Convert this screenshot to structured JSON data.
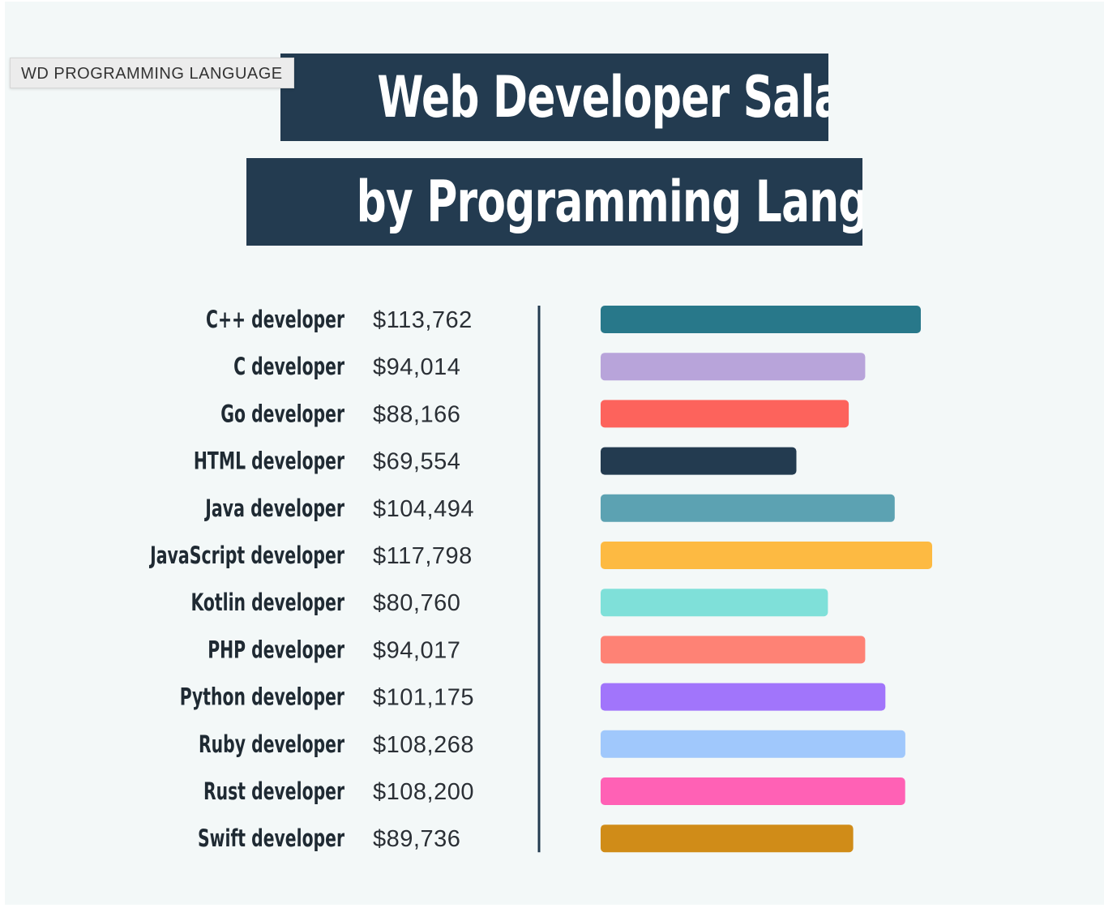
{
  "tag": "WD PROGRAMMING LANGUAGE",
  "title_line1": "Web Developer Salaries",
  "title_line2": "by Programming Language",
  "chart_data": {
    "type": "bar",
    "orientation": "horizontal",
    "categories": [
      "C++ developer",
      "C developer",
      "Go developer",
      "HTML developer",
      "Java developer",
      "JavaScript developer",
      "Kotlin developer",
      "PHP developer",
      "Python developer",
      "Ruby developer",
      "Rust developer",
      "Swift developer"
    ],
    "value_labels": [
      "$113,762",
      "$94,014",
      "$88,166",
      "$69,554",
      "$104,494",
      "$117,798",
      "$80,760",
      "$94,017",
      "$101,175",
      "$108,268",
      "$108,200",
      "$89,736"
    ],
    "values": [
      113762,
      94014,
      88166,
      69554,
      104494,
      117798,
      80760,
      94017,
      101175,
      108268,
      108200,
      89736
    ],
    "colors": [
      "#28788a",
      "#b8a4da",
      "#fd635c",
      "#233b50",
      "#5ca2b2",
      "#fdba42",
      "#7fe0d9",
      "#fe8275",
      "#a175fb",
      "#a0c8fc",
      "#ff61b5",
      "#d08c18"
    ],
    "axis_color": "#233b50",
    "grid": false
  }
}
